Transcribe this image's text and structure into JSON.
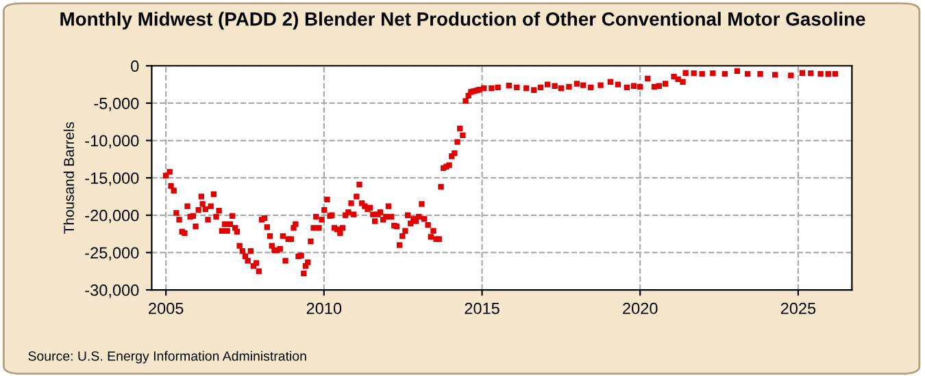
{
  "chart_data": {
    "type": "scatter",
    "title": "Monthly Midwest (PADD 2) Blender Net Production of Other Conventional Motor Gasoline",
    "ylabel": "Thousand Barrels",
    "annotations": [
      "Source: U.S. Energy Information Administration"
    ],
    "marker": "square",
    "grid": true,
    "xlim": [
      2004.55,
      2026.7
    ],
    "xticks": [
      2005,
      2010,
      2015,
      2020,
      2025
    ],
    "ylim": [
      -30000,
      0
    ],
    "yticks": [
      {
        "value": -30000,
        "label": "-30,000"
      },
      {
        "value": -25000,
        "label": "-25,000"
      },
      {
        "value": -20000,
        "label": "-20,000"
      },
      {
        "value": -15000,
        "label": "-15,000"
      },
      {
        "value": -10000,
        "label": "-10,000"
      },
      {
        "value": -5000,
        "label": "-5,000"
      },
      {
        "value": 0,
        "label": "0"
      }
    ],
    "series": [
      {
        "color": "#e00000",
        "x": [
          2005.0,
          2005.12,
          2005.16,
          2005.25,
          2005.33,
          2005.42,
          2005.51,
          2005.59,
          2005.68,
          2005.77,
          2005.86,
          2005.94,
          2006.03,
          2006.12,
          2006.16,
          2006.25,
          2006.33,
          2006.42,
          2006.51,
          2006.59,
          2006.68,
          2006.77,
          2006.86,
          2006.94,
          2007.03,
          2007.1,
          2007.19,
          2007.25,
          2007.33,
          2007.42,
          2007.51,
          2007.59,
          2007.68,
          2007.77,
          2007.86,
          2007.94,
          2008.03,
          2008.12,
          2008.2,
          2008.29,
          2008.35,
          2008.43,
          2008.52,
          2008.61,
          2008.7,
          2008.78,
          2008.87,
          2008.96,
          2009.04,
          2009.1,
          2009.19,
          2009.28,
          2009.36,
          2009.42,
          2009.49,
          2009.58,
          2009.67,
          2009.75,
          2009.84,
          2009.93,
          2010.01,
          2010.1,
          2010.19,
          2010.25,
          2010.33,
          2010.42,
          2010.51,
          2010.59,
          2010.68,
          2010.77,
          2010.86,
          2010.94,
          2011.03,
          2011.12,
          2011.2,
          2011.29,
          2011.38,
          2011.46,
          2011.55,
          2011.61,
          2011.7,
          2011.78,
          2011.87,
          2011.96,
          2012.04,
          2012.13,
          2012.22,
          2012.3,
          2012.39,
          2012.48,
          2012.57,
          2012.65,
          2012.74,
          2012.83,
          2012.91,
          2013.0,
          2013.09,
          2013.17,
          2013.29,
          2013.38,
          2013.46,
          2013.55,
          2013.64,
          2013.7,
          2013.78,
          2013.87,
          2013.96,
          2014.04,
          2014.13,
          2014.22,
          2014.3,
          2014.39,
          2014.48,
          2014.57,
          2014.65,
          2014.74,
          2014.83,
          2014.91,
          2015.06,
          2015.3,
          2015.5,
          2015.85,
          2016.1,
          2016.4,
          2016.64,
          2016.85,
          2017.07,
          2017.3,
          2017.5,
          2017.75,
          2018.0,
          2018.2,
          2018.44,
          2018.75,
          2019.06,
          2019.3,
          2019.58,
          2019.8,
          2020.0,
          2020.24,
          2020.45,
          2020.6,
          2020.8,
          2021.07,
          2021.2,
          2021.35,
          2021.44,
          2021.7,
          2021.96,
          2022.3,
          2022.68,
          2023.07,
          2023.4,
          2023.8,
          2024.27,
          2024.77,
          2025.13,
          2025.4,
          2025.71,
          2025.95,
          2026.17
        ],
        "values": [
          -14700,
          -14200,
          -16100,
          -16700,
          -19700,
          -20600,
          -22200,
          -22400,
          -18800,
          -20200,
          -20100,
          -21500,
          -19300,
          -17500,
          -18500,
          -19200,
          -20600,
          -18800,
          -17200,
          -20200,
          -19400,
          -22100,
          -21200,
          -22100,
          -21200,
          -20100,
          -21700,
          -22200,
          -24100,
          -24800,
          -25500,
          -26100,
          -24800,
          -26800,
          -26400,
          -27500,
          -20600,
          -20400,
          -21600,
          -22800,
          -24100,
          -24700,
          -24700,
          -24500,
          -22800,
          -26100,
          -23200,
          -23200,
          -21700,
          -21200,
          -25500,
          -25400,
          -27800,
          -26800,
          -26300,
          -23500,
          -21700,
          -20200,
          -21700,
          -20600,
          -19300,
          -17900,
          -20100,
          -20000,
          -21700,
          -21900,
          -22400,
          -21700,
          -20000,
          -19600,
          -18400,
          -19900,
          -17500,
          -15900,
          -18400,
          -18800,
          -19200,
          -19000,
          -19900,
          -20800,
          -19900,
          -19600,
          -20600,
          -20200,
          -18800,
          -20200,
          -21400,
          -21500,
          -24000,
          -22800,
          -22100,
          -20000,
          -21100,
          -20500,
          -20800,
          -20200,
          -18500,
          -20500,
          -21300,
          -22900,
          -22100,
          -23200,
          -23200,
          -16200,
          -13700,
          -13500,
          -13300,
          -12100,
          -11700,
          -10200,
          -8400,
          -9300,
          -4700,
          -4000,
          -3500,
          -3400,
          -3300,
          -3200,
          -3000,
          -3000,
          -2900,
          -2650,
          -2900,
          -3000,
          -3250,
          -2900,
          -2500,
          -2700,
          -3000,
          -2800,
          -2400,
          -2600,
          -2900,
          -2600,
          -2150,
          -2500,
          -2900,
          -2700,
          -2800,
          -1700,
          -2800,
          -2700,
          -2400,
          -1450,
          -1800,
          -2150,
          -960,
          -1000,
          -1080,
          -1000,
          -1080,
          -700,
          -1080,
          -1100,
          -1200,
          -1300,
          -960,
          -1000,
          -1080,
          -1100,
          -1080
        ]
      }
    ]
  }
}
